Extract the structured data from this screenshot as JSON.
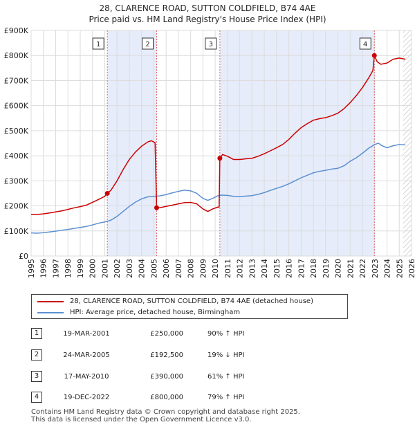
{
  "title_line1": "28, CLARENCE ROAD, SUTTON COLDFIELD, B74 4AE",
  "title_line2": "Price paid vs. HM Land Registry's House Price Index (HPI)",
  "chart_data": {
    "type": "line",
    "title": "28, CLARENCE ROAD, SUTTON COLDFIELD, B74 4AE — Price paid vs. HM Land Registry's House Price Index (HPI)",
    "xlabel": "",
    "ylabel": "",
    "xlim": [
      1995,
      2026
    ],
    "ylim": [
      0,
      900000
    ],
    "x_ticks": [
      "1995",
      "1996",
      "1997",
      "1998",
      "1999",
      "2000",
      "2001",
      "2002",
      "2003",
      "2004",
      "2005",
      "2006",
      "2007",
      "2008",
      "2009",
      "2010",
      "2011",
      "2012",
      "2013",
      "2014",
      "2015",
      "2016",
      "2017",
      "2018",
      "2019",
      "2020",
      "2021",
      "2022",
      "2023",
      "2024",
      "2025",
      "2026"
    ],
    "y_ticks": [
      {
        "value": 0,
        "label": "£0"
      },
      {
        "value": 100000,
        "label": "£100K"
      },
      {
        "value": 200000,
        "label": "£200K"
      },
      {
        "value": 300000,
        "label": "£300K"
      },
      {
        "value": 400000,
        "label": "£400K"
      },
      {
        "value": 500000,
        "label": "£500K"
      },
      {
        "value": 600000,
        "label": "£600K"
      },
      {
        "value": 700000,
        "label": "£700K"
      },
      {
        "value": 800000,
        "label": "£800K"
      },
      {
        "value": 900000,
        "label": "£900K"
      }
    ],
    "shaded_periods": [
      [
        2001.21,
        2005.23
      ],
      [
        2010.38,
        2022.97
      ]
    ],
    "future_hatch_from": 2025.3,
    "series": [
      {
        "name": "28, CLARENCE ROAD, SUTTON COLDFIELD, B74 4AE (detached house)",
        "color": "#cc0000",
        "points": [
          [
            1995.0,
            166000
          ],
          [
            1995.5,
            166000
          ],
          [
            1996.0,
            168000
          ],
          [
            1996.5,
            172000
          ],
          [
            1997.0,
            176000
          ],
          [
            1997.5,
            180000
          ],
          [
            1998.0,
            186000
          ],
          [
            1998.5,
            192000
          ],
          [
            1999.0,
            197000
          ],
          [
            1999.5,
            203000
          ],
          [
            2000.0,
            214000
          ],
          [
            2000.5,
            226000
          ],
          [
            2001.0,
            238000
          ],
          [
            2001.21,
            250000
          ],
          [
            2001.5,
            262000
          ],
          [
            2002.0,
            300000
          ],
          [
            2002.5,
            345000
          ],
          [
            2003.0,
            385000
          ],
          [
            2003.5,
            415000
          ],
          [
            2004.0,
            438000
          ],
          [
            2004.5,
            455000
          ],
          [
            2004.8,
            460000
          ],
          [
            2005.1,
            452000
          ],
          [
            2005.23,
            192500
          ],
          [
            2005.5,
            193000
          ],
          [
            2006.0,
            198000
          ],
          [
            2006.5,
            203000
          ],
          [
            2007.0,
            208000
          ],
          [
            2007.5,
            213000
          ],
          [
            2008.0,
            214000
          ],
          [
            2008.5,
            208000
          ],
          [
            2009.0,
            188000
          ],
          [
            2009.4,
            178000
          ],
          [
            2009.8,
            188000
          ],
          [
            2010.2,
            195000
          ],
          [
            2010.32,
            195000
          ],
          [
            2010.38,
            390000
          ],
          [
            2010.6,
            405000
          ],
          [
            2011.0,
            398000
          ],
          [
            2011.5,
            385000
          ],
          [
            2012.0,
            385000
          ],
          [
            2012.5,
            388000
          ],
          [
            2013.0,
            390000
          ],
          [
            2013.5,
            398000
          ],
          [
            2014.0,
            408000
          ],
          [
            2014.5,
            420000
          ],
          [
            2015.0,
            432000
          ],
          [
            2015.5,
            445000
          ],
          [
            2016.0,
            465000
          ],
          [
            2016.5,
            490000
          ],
          [
            2017.0,
            512000
          ],
          [
            2017.5,
            528000
          ],
          [
            2018.0,
            542000
          ],
          [
            2018.5,
            548000
          ],
          [
            2019.0,
            552000
          ],
          [
            2019.5,
            560000
          ],
          [
            2020.0,
            570000
          ],
          [
            2020.5,
            588000
          ],
          [
            2021.0,
            612000
          ],
          [
            2021.5,
            640000
          ],
          [
            2022.0,
            672000
          ],
          [
            2022.5,
            710000
          ],
          [
            2022.85,
            740000
          ],
          [
            2022.97,
            800000
          ],
          [
            2023.2,
            775000
          ],
          [
            2023.5,
            765000
          ],
          [
            2024.0,
            770000
          ],
          [
            2024.5,
            785000
          ],
          [
            2025.0,
            790000
          ],
          [
            2025.5,
            785000
          ]
        ]
      },
      {
        "name": "HPI: Average price, detached house, Birmingham",
        "color": "#5b8fcf",
        "points": [
          [
            1995.0,
            92000
          ],
          [
            1995.5,
            91000
          ],
          [
            1996.0,
            93000
          ],
          [
            1996.5,
            96000
          ],
          [
            1997.0,
            99000
          ],
          [
            1997.5,
            103000
          ],
          [
            1998.0,
            106000
          ],
          [
            1998.5,
            110000
          ],
          [
            1999.0,
            114000
          ],
          [
            1999.5,
            118000
          ],
          [
            2000.0,
            124000
          ],
          [
            2000.5,
            131000
          ],
          [
            2001.0,
            136000
          ],
          [
            2001.5,
            143000
          ],
          [
            2002.0,
            158000
          ],
          [
            2002.5,
            178000
          ],
          [
            2003.0,
            198000
          ],
          [
            2003.5,
            215000
          ],
          [
            2004.0,
            228000
          ],
          [
            2004.5,
            236000
          ],
          [
            2005.0,
            238000
          ],
          [
            2005.5,
            240000
          ],
          [
            2006.0,
            245000
          ],
          [
            2006.5,
            252000
          ],
          [
            2007.0,
            258000
          ],
          [
            2007.5,
            263000
          ],
          [
            2008.0,
            260000
          ],
          [
            2008.5,
            250000
          ],
          [
            2009.0,
            230000
          ],
          [
            2009.4,
            222000
          ],
          [
            2009.8,
            230000
          ],
          [
            2010.2,
            240000
          ],
          [
            2010.5,
            243000
          ],
          [
            2011.0,
            242000
          ],
          [
            2011.5,
            238000
          ],
          [
            2012.0,
            237000
          ],
          [
            2012.5,
            239000
          ],
          [
            2013.0,
            241000
          ],
          [
            2013.5,
            246000
          ],
          [
            2014.0,
            253000
          ],
          [
            2014.5,
            262000
          ],
          [
            2015.0,
            270000
          ],
          [
            2015.5,
            278000
          ],
          [
            2016.0,
            288000
          ],
          [
            2016.5,
            300000
          ],
          [
            2017.0,
            312000
          ],
          [
            2017.5,
            322000
          ],
          [
            2018.0,
            332000
          ],
          [
            2018.5,
            338000
          ],
          [
            2019.0,
            342000
          ],
          [
            2019.5,
            347000
          ],
          [
            2020.0,
            350000
          ],
          [
            2020.5,
            360000
          ],
          [
            2021.0,
            378000
          ],
          [
            2021.5,
            392000
          ],
          [
            2022.0,
            410000
          ],
          [
            2022.5,
            430000
          ],
          [
            2023.0,
            445000
          ],
          [
            2023.3,
            450000
          ],
          [
            2023.6,
            440000
          ],
          [
            2024.0,
            432000
          ],
          [
            2024.5,
            440000
          ],
          [
            2025.0,
            445000
          ],
          [
            2025.5,
            443000
          ]
        ]
      }
    ],
    "sales": [
      {
        "label": "1",
        "date": "19-MAR-2001",
        "x": 2001.21,
        "price": 250000,
        "price_text": "£250,000",
        "hpi_text": "90% ↑ HPI"
      },
      {
        "label": "2",
        "date": "24-MAR-2005",
        "x": 2005.23,
        "price": 192500,
        "price_text": "£192,500",
        "hpi_text": "19% ↓ HPI"
      },
      {
        "label": "3",
        "date": "17-MAY-2010",
        "x": 2010.38,
        "price": 390000,
        "price_text": "£390,000",
        "hpi_text": "61% ↑ HPI"
      },
      {
        "label": "4",
        "date": "19-DEC-2022",
        "x": 2022.97,
        "price": 800000,
        "price_text": "£800,000",
        "hpi_text": "79% ↑ HPI"
      }
    ]
  },
  "legend": {
    "property_label": "28, CLARENCE ROAD, SUTTON COLDFIELD, B74 4AE (detached house)",
    "hpi_label": "HPI: Average price, detached house, Birmingham",
    "property_color": "#cc0000",
    "hpi_color": "#5b8fcf"
  },
  "table": [
    {
      "num": "1",
      "date": "19-MAR-2001",
      "price": "£250,000",
      "hpi": "90% ↑ HPI"
    },
    {
      "num": "2",
      "date": "24-MAR-2005",
      "price": "£192,500",
      "hpi": "19% ↓ HPI"
    },
    {
      "num": "3",
      "date": "17-MAY-2010",
      "price": "£390,000",
      "hpi": "61% ↑ HPI"
    },
    {
      "num": "4",
      "date": "19-DEC-2022",
      "price": "£800,000",
      "hpi": "79% ↑ HPI"
    }
  ],
  "footer_line1": "Contains HM Land Registry data © Crown copyright and database right 2025.",
  "footer_line2": "This data is licensed under the Open Government Licence v3.0."
}
